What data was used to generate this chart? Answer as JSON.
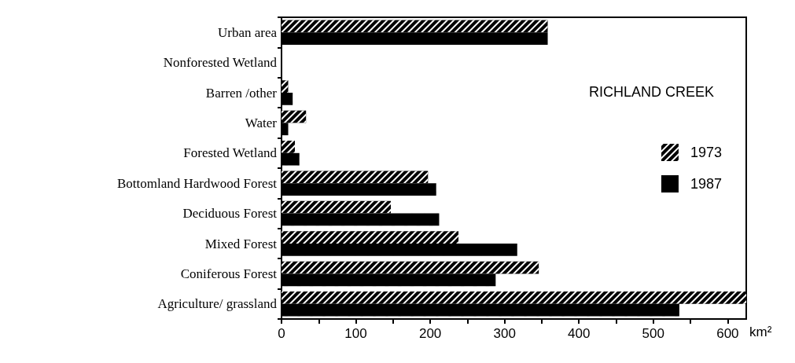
{
  "chart_data": {
    "type": "bar",
    "orientation": "horizontal",
    "title": "RICHLAND CREEK",
    "xlabel": "km²",
    "categories": [
      "Urban area",
      "Nonforested Wetland",
      "Barren /other",
      "Water",
      "Forested Wetland",
      "Bottomland Hardwood Forest",
      "Deciduous Forest",
      "Mixed Forest",
      "Coniferous Forest",
      "Agriculture/ grassland"
    ],
    "series": [
      {
        "name": "1973",
        "color": "#000000",
        "values": [
          358,
          0,
          9,
          33,
          18,
          197,
          147,
          238,
          346,
          625
        ]
      },
      {
        "name": "1987",
        "color": "#000000",
        "values": [
          358,
          0,
          15,
          9,
          24,
          208,
          212,
          317,
          288,
          535
        ]
      }
    ],
    "xlim": [
      0,
      625
    ],
    "xticks": [
      0,
      {
        "value": 50,
        "label": null
      },
      100,
      {
        "value": 150,
        "label": null
      },
      200,
      {
        "value": 250,
        "label": null
      },
      300,
      {
        "value": 350,
        "label": null
      },
      400,
      {
        "value": 450,
        "label": null
      },
      500,
      {
        "value": 550,
        "label": null
      },
      600
    ],
    "grid": false,
    "legend": "right"
  }
}
